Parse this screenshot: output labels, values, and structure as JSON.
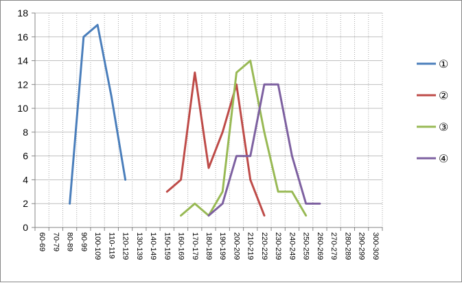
{
  "chart_data": {
    "type": "line",
    "title": "",
    "xlabel": "",
    "ylabel": "",
    "ylim": [
      0,
      18
    ],
    "yticks": [
      0,
      2,
      4,
      6,
      8,
      10,
      12,
      14,
      16,
      18
    ],
    "grid": {
      "horizontal": "solid",
      "vertical": "dotted"
    },
    "legend_position": "right",
    "categories": [
      "60-69",
      "70-79",
      "80-89",
      "90-99",
      "100-109",
      "110-119",
      "120-129",
      "130-139",
      "140-149",
      "150-159",
      "160-169",
      "170-179",
      "180-189",
      "190-199",
      "200-209",
      "210-219",
      "220-229",
      "230-239",
      "240-249",
      "250-259",
      "260-269",
      "270-279",
      "280-289",
      "290-299",
      "300-309"
    ],
    "series": [
      {
        "name": "①",
        "color": "#4a7ebb",
        "values": [
          null,
          null,
          2,
          16,
          17,
          11,
          4,
          null,
          null,
          null,
          null,
          null,
          null,
          null,
          null,
          null,
          null,
          null,
          null,
          null,
          null,
          null,
          null,
          null,
          null
        ]
      },
      {
        "name": "②",
        "color": "#be4b48",
        "values": [
          null,
          null,
          null,
          null,
          null,
          null,
          null,
          null,
          null,
          3,
          4,
          13,
          5,
          8,
          12,
          4,
          1,
          null,
          null,
          null,
          null,
          null,
          null,
          null,
          null
        ]
      },
      {
        "name": "③",
        "color": "#98b954",
        "values": [
          null,
          null,
          null,
          null,
          null,
          null,
          null,
          null,
          null,
          null,
          1,
          2,
          1,
          3,
          13,
          14,
          8,
          3,
          3,
          1,
          null,
          null,
          null,
          null,
          null
        ]
      },
      {
        "name": "④",
        "color": "#7d60a0",
        "values": [
          null,
          null,
          null,
          null,
          null,
          null,
          null,
          null,
          null,
          null,
          null,
          null,
          1,
          2,
          6,
          6,
          12,
          12,
          6,
          2,
          2,
          null,
          null,
          null,
          null
        ]
      }
    ]
  }
}
